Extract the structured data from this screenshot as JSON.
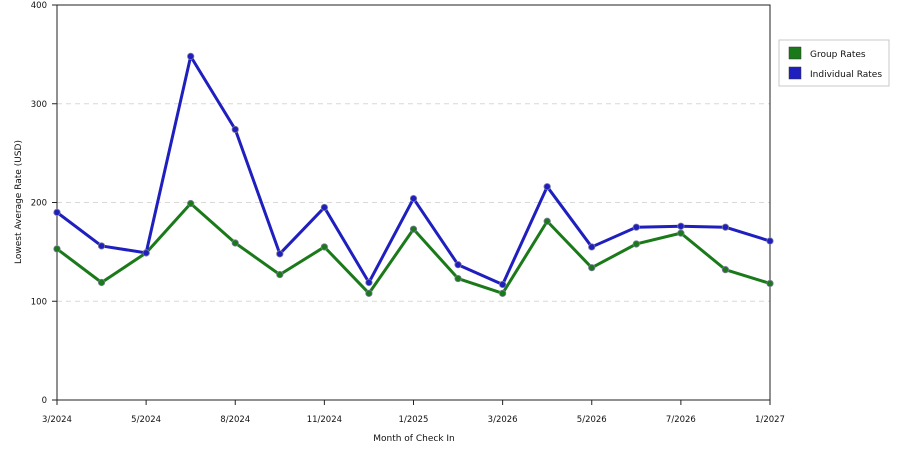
{
  "chart_data": {
    "type": "line",
    "title": "",
    "xlabel": "Month of Check In",
    "ylabel": "Lowest Average Rate (USD)",
    "ylim": [
      0,
      400
    ],
    "y_ticks": [
      0,
      100,
      200,
      300,
      400
    ],
    "grid": true,
    "legend_position": "top-right",
    "x_tick_labels": [
      "3/2024",
      "5/2024",
      "8/2024",
      "11/2024",
      "1/2025",
      "3/2026",
      "5/2026",
      "7/2026",
      "1/2027"
    ],
    "x_tick_indices": [
      0,
      2,
      4,
      6,
      8,
      10,
      12,
      14,
      16
    ],
    "series": [
      {
        "name": "Group Rates",
        "color": "#1a7a1a",
        "values": [
          153,
          119,
          149,
          199,
          159,
          127,
          155,
          108,
          173,
          123,
          108,
          181,
          134,
          158,
          169,
          132,
          118
        ]
      },
      {
        "name": "Individual Rates",
        "color": "#1f1fbf",
        "values": [
          190,
          156,
          149,
          348,
          274,
          148,
          195,
          119,
          204,
          137,
          117,
          216,
          155,
          175,
          176,
          175,
          161
        ]
      }
    ]
  }
}
